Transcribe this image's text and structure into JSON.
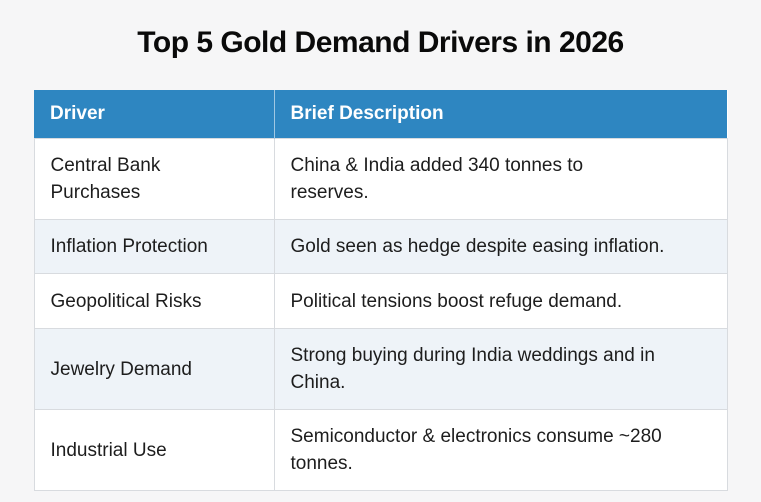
{
  "title": "Top 5 Gold Demand Drivers in 2026",
  "chart_data": {
    "type": "table",
    "title": "Top 5 Gold Demand Drivers in 2026",
    "columns": [
      "Driver",
      "Brief Description"
    ],
    "rows": [
      [
        "Central Bank Purchases",
        "China & India added 340 tonnes to reserves."
      ],
      [
        "Inflation Protection",
        "Gold seen as hedge despite easing inflation."
      ],
      [
        "Geopolitical Risks",
        "Political tensions boost refuge demand."
      ],
      [
        "Jewelry Demand",
        "Strong buying during India weddings and in China."
      ],
      [
        "Industrial Use",
        "Semiconductor & electronics consume ~280 tonnes."
      ]
    ],
    "layout": {
      "header_position": "top",
      "striped": true,
      "striped_row_numbers": [
        2,
        4
      ],
      "grid": "light horizontal and vertical cell borders"
    }
  },
  "colors": {
    "header_background": "#2e86c1",
    "header_text": "#ffffff",
    "row_background": "#ffffff",
    "stripe_row_background": "#eef3f8",
    "page_background": "#f6f6f7",
    "cell_border": "#d8dbdf",
    "body_text": "#1d1d1d",
    "title_text": "#0a0a0a"
  }
}
